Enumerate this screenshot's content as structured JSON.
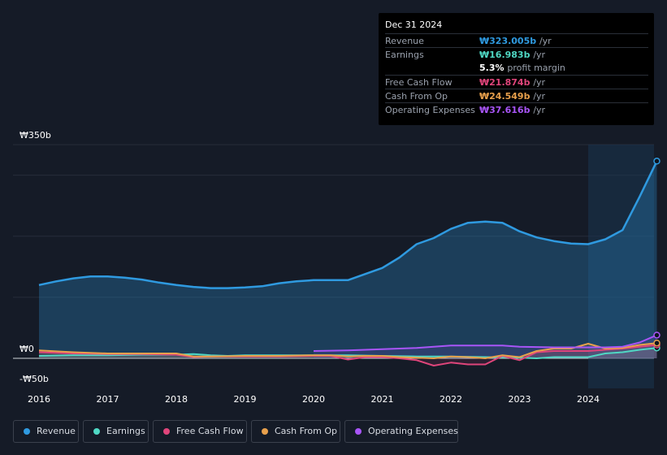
{
  "tooltip": {
    "date": "Dec 31 2024",
    "rows": [
      {
        "label": "Revenue",
        "value": "₩323.005b",
        "unit": "/yr",
        "color": "#2f9ae0"
      },
      {
        "label": "Earnings",
        "value": "₩16.983b",
        "unit": "/yr",
        "color": "#4fd8c4"
      },
      {
        "label": "",
        "value": "5.3%",
        "unit": "profit margin",
        "color": "#ffffff"
      },
      {
        "label": "Free Cash Flow",
        "value": "₩21.874b",
        "unit": "/yr",
        "color": "#e0457b"
      },
      {
        "label": "Cash From Op",
        "value": "₩24.549b",
        "unit": "/yr",
        "color": "#e8a04c"
      },
      {
        "label": "Operating Expenses",
        "value": "₩37.616b",
        "unit": "/yr",
        "color": "#a855f7"
      }
    ]
  },
  "chart_data": {
    "type": "line",
    "title": "",
    "xlabel": "",
    "ylabel": "",
    "ylim": [
      -50,
      350
    ],
    "y_tick_labels": [
      "₩350b",
      "₩0",
      "-₩50b"
    ],
    "x_tick_labels": [
      "2016",
      "2017",
      "2018",
      "2019",
      "2020",
      "2021",
      "2022",
      "2023",
      "2024"
    ],
    "x_ticks": [
      2016,
      2017,
      2018,
      2019,
      2020,
      2021,
      2022,
      2023,
      2024
    ],
    "xlim": [
      2015.6,
      2025.0
    ],
    "highlight_start": 2024.0,
    "series": [
      {
        "name": "Revenue",
        "color": "#2f9ae0",
        "x": [
          2016.0,
          2016.25,
          2016.5,
          2016.75,
          2017.0,
          2017.25,
          2017.5,
          2017.75,
          2018.0,
          2018.25,
          2018.5,
          2018.75,
          2019.0,
          2019.25,
          2019.5,
          2019.75,
          2020.0,
          2020.25,
          2020.5,
          2020.75,
          2021.0,
          2021.25,
          2021.5,
          2021.75,
          2022.0,
          2022.25,
          2022.5,
          2022.75,
          2023.0,
          2023.25,
          2023.5,
          2023.75,
          2024.0,
          2024.25,
          2024.5,
          2024.75,
          2025.0
        ],
        "values": [
          120,
          126,
          131,
          134,
          134,
          132,
          129,
          124,
          120,
          117,
          115,
          115,
          116,
          118,
          123,
          126,
          128,
          128,
          128,
          138,
          148,
          165,
          187,
          197,
          212,
          222,
          224,
          222,
          208,
          198,
          192,
          188,
          187,
          195,
          210,
          265,
          323
        ]
      },
      {
        "name": "Earnings",
        "color": "#4fd8c4",
        "x": [
          2016.0,
          2016.5,
          2017.0,
          2017.5,
          2018.0,
          2018.25,
          2018.5,
          2018.75,
          2019.0,
          2019.5,
          2020.0,
          2020.5,
          2021.0,
          2021.5,
          2022.0,
          2022.5,
          2023.0,
          2023.25,
          2023.5,
          2023.75,
          2024.0,
          2024.25,
          2024.5,
          2024.75,
          2025.0
        ],
        "values": [
          4,
          5,
          5,
          6,
          6,
          7,
          5,
          4,
          5,
          5,
          5,
          5,
          4,
          3,
          3,
          2,
          1,
          0,
          2,
          2,
          2,
          8,
          10,
          14,
          17
        ]
      },
      {
        "name": "Free Cash Flow",
        "color": "#e0457b",
        "x": [
          2016.0,
          2016.5,
          2017.0,
          2017.5,
          2018.0,
          2018.25,
          2018.5,
          2019.0,
          2019.5,
          2020.0,
          2020.25,
          2020.5,
          2020.75,
          2021.0,
          2021.25,
          2021.5,
          2021.75,
          2022.0,
          2022.25,
          2022.5,
          2022.75,
          2023.0,
          2023.25,
          2023.5,
          2023.75,
          2024.0,
          2024.25,
          2024.5,
          2024.75,
          2025.0
        ],
        "values": [
          10,
          8,
          7,
          7,
          6,
          2,
          3,
          3,
          3,
          4,
          4,
          -2,
          2,
          2,
          0,
          -3,
          -12,
          -7,
          -10,
          -10,
          4,
          -3,
          10,
          12,
          12,
          12,
          14,
          16,
          19,
          22
        ]
      },
      {
        "name": "Cash From Op",
        "color": "#e8a04c",
        "x": [
          2016.0,
          2016.5,
          2017.0,
          2017.5,
          2018.0,
          2018.25,
          2018.5,
          2019.0,
          2019.5,
          2020.0,
          2020.25,
          2020.5,
          2020.75,
          2021.0,
          2021.25,
          2021.5,
          2021.75,
          2022.0,
          2022.25,
          2022.5,
          2022.75,
          2023.0,
          2023.25,
          2023.5,
          2023.75,
          2024.0,
          2024.25,
          2024.5,
          2024.75,
          2025.0
        ],
        "values": [
          13,
          10,
          8,
          8,
          8,
          3,
          3,
          4,
          4,
          5,
          5,
          3,
          4,
          4,
          2,
          1,
          0,
          3,
          2,
          0,
          5,
          2,
          12,
          16,
          16,
          24,
          16,
          17,
          22,
          25
        ]
      },
      {
        "name": "Operating Expenses",
        "color": "#a855f7",
        "x": [
          2020.0,
          2020.5,
          2021.0,
          2021.5,
          2022.0,
          2022.5,
          2022.75,
          2023.0,
          2023.5,
          2024.0,
          2024.25,
          2024.5,
          2024.75,
          2025.0
        ],
        "values": [
          12,
          13,
          15,
          17,
          21,
          21,
          21,
          19,
          18,
          18,
          18,
          19,
          26,
          38
        ]
      }
    ]
  },
  "legend": [
    {
      "label": "Revenue",
      "color": "#2f9ae0"
    },
    {
      "label": "Earnings",
      "color": "#4fd8c4"
    },
    {
      "label": "Free Cash Flow",
      "color": "#e0457b"
    },
    {
      "label": "Cash From Op",
      "color": "#e8a04c"
    },
    {
      "label": "Operating Expenses",
      "color": "#a855f7"
    }
  ]
}
